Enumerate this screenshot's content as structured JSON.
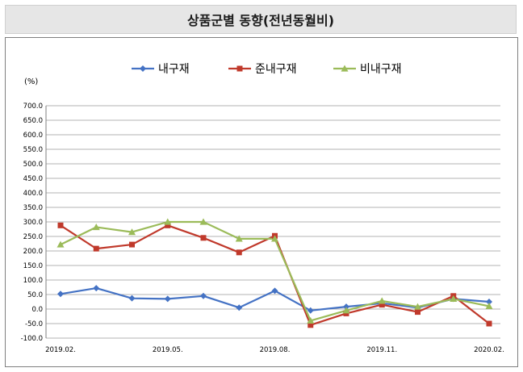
{
  "header": {
    "title": "상품군별 동향(전년동월비)"
  },
  "chart_data": {
    "type": "line",
    "title": "상품군별 동향(전년동월비)",
    "ylabel": "(%)",
    "xlabel": "",
    "ylim": [
      -100,
      700
    ],
    "y_ticks": [
      -100,
      -50,
      0,
      50,
      100,
      150,
      200,
      250,
      300,
      350,
      400,
      450,
      500,
      550,
      600,
      650,
      700
    ],
    "y_tick_labels": [
      "-100.0",
      "-50.0",
      "0.0",
      "50.0",
      "100.0",
      "150.0",
      "200.0",
      "250.0",
      "300.0",
      "350.0",
      "400.0",
      "450.0",
      "500.0",
      "550.0",
      "600.0",
      "650.0",
      "700.0"
    ],
    "x": [
      "2019.02.",
      "2019.03.",
      "2019.04.",
      "2019.05.",
      "2019.06.",
      "2019.07.",
      "2019.08.",
      "2019.09.",
      "2019.10.",
      "2019.11.",
      "2019.12.",
      "2020.01.",
      "2020.02."
    ],
    "x_tick_labels": [
      "2019.02.",
      "",
      "",
      "2019.05.",
      "",
      "",
      "2019.08.",
      "",
      "",
      "2019.11.",
      "",
      "",
      "2020.02."
    ],
    "legend_position": "top",
    "grid": "horizontal",
    "series": [
      {
        "name": "내구재",
        "color": "#4472c4",
        "marker": "diamond",
        "values": [
          52,
          72,
          37,
          35,
          45,
          5,
          63,
          -5,
          8,
          20,
          5,
          35,
          25
        ]
      },
      {
        "name": "준내구재",
        "color": "#c0392b",
        "marker": "square",
        "values": [
          288,
          208,
          222,
          288,
          245,
          195,
          252,
          -55,
          -15,
          15,
          -10,
          45,
          -50
        ]
      },
      {
        "name": "비내구재",
        "color": "#9bbb59",
        "marker": "triangle",
        "values": [
          222,
          282,
          265,
          300,
          300,
          242,
          242,
          -40,
          -5,
          28,
          8,
          35,
          10
        ]
      }
    ]
  }
}
